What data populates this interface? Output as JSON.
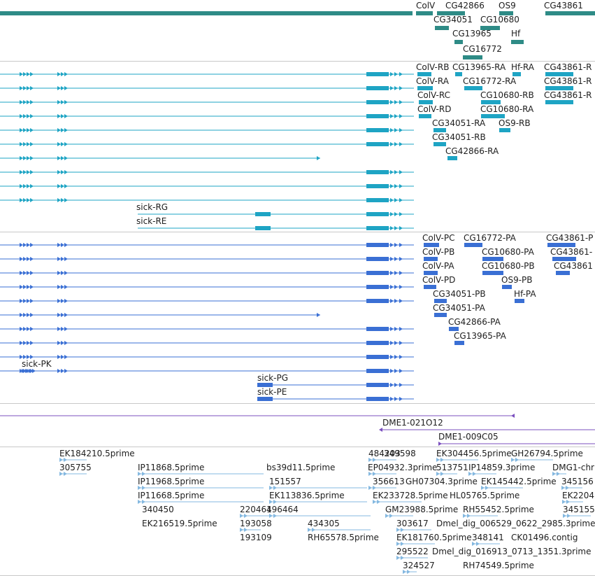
{
  "colors": {
    "gene": "#2e8b86",
    "mrna": "#1ea4c4",
    "protein": "#3a6fd4",
    "primer": "#7b4fbf",
    "est": "#84b8e0",
    "divider": "#c8c8c8"
  },
  "tracks": [
    {
      "name": "gene-track",
      "color": "gene",
      "features": [
        {
          "label": "ColV"
        },
        {
          "label": "CG42866"
        },
        {
          "label": "OS9"
        },
        {
          "label": "CG43861"
        },
        {
          "label": "CG34051"
        },
        {
          "label": "CG10680"
        },
        {
          "label": "CG13965"
        },
        {
          "label": "Hf"
        },
        {
          "label": "CG16772"
        }
      ]
    },
    {
      "name": "transcript-track",
      "color": "mrna",
      "features": [
        {
          "label": "ColV-RB"
        },
        {
          "label": "CG13965-RA"
        },
        {
          "label": "Hf-RA"
        },
        {
          "label": "CG43861-R"
        },
        {
          "label": "ColV-RA"
        },
        {
          "label": "CG16772-RA"
        },
        {
          "label": "CG43861-R"
        },
        {
          "label": "ColV-RC"
        },
        {
          "label": "CG10680-RB"
        },
        {
          "label": "CG43861-R"
        },
        {
          "label": "ColV-RD"
        },
        {
          "label": "CG10680-RA"
        },
        {
          "label": "CG34051-RA"
        },
        {
          "label": "OS9-RB"
        },
        {
          "label": "CG34051-RB"
        },
        {
          "label": "CG42866-RA"
        },
        {
          "label": "sick-RG"
        },
        {
          "label": "sick-RE"
        }
      ]
    },
    {
      "name": "polypeptide-track",
      "color": "protein",
      "features": [
        {
          "label": "ColV-PC"
        },
        {
          "label": "CG16772-PA"
        },
        {
          "label": "CG43861-P"
        },
        {
          "label": "ColV-PB"
        },
        {
          "label": "CG10680-PA"
        },
        {
          "label": "CG43861-"
        },
        {
          "label": "ColV-PA"
        },
        {
          "label": "CG10680-PB"
        },
        {
          "label": "CG43861"
        },
        {
          "label": "ColV-PD"
        },
        {
          "label": "OS9-PB"
        },
        {
          "label": "CG34051-PB"
        },
        {
          "label": "Hf-PA"
        },
        {
          "label": "CG34051-PA"
        },
        {
          "label": "CG42866-PA"
        },
        {
          "label": "CG13965-PA"
        },
        {
          "label": "sick-PK"
        },
        {
          "label": "sick-PG"
        },
        {
          "label": "sick-PE"
        }
      ]
    },
    {
      "name": "primer-track",
      "color": "primer",
      "features": [
        {
          "label": "DME1-021O12"
        },
        {
          "label": "DME1-009C05"
        }
      ]
    },
    {
      "name": "est-track",
      "color": "est",
      "features": [
        {
          "label": "EK184210.5prime"
        },
        {
          "label": "484203"
        },
        {
          "label": "349598"
        },
        {
          "label": "EK304456.5prime"
        },
        {
          "label": "GH26794.5prime"
        },
        {
          "label": "305755"
        },
        {
          "label": "IP11868.5prime"
        },
        {
          "label": "bs39d11.5prime"
        },
        {
          "label": "EP04932.3prime"
        },
        {
          "label": "513751"
        },
        {
          "label": "IP14859.3prime"
        },
        {
          "label": "DMG1-chr"
        },
        {
          "label": "IP11968.5prime"
        },
        {
          "label": "151557"
        },
        {
          "label": "356613"
        },
        {
          "label": "GH07304.3prime"
        },
        {
          "label": "EK145442.5prime"
        },
        {
          "label": "345156"
        },
        {
          "label": "IP11668.5prime"
        },
        {
          "label": "EK113836.5prime"
        },
        {
          "label": "EK233728.5prime"
        },
        {
          "label": "HL05765.5prime"
        },
        {
          "label": "EK2204"
        },
        {
          "label": "340450"
        },
        {
          "label": "220461"
        },
        {
          "label": "496464"
        },
        {
          "label": "GM23988.5prime"
        },
        {
          "label": "RH55452.5prime"
        },
        {
          "label": "345155"
        },
        {
          "label": "EK216519.5prime"
        },
        {
          "label": "193058"
        },
        {
          "label": "434305"
        },
        {
          "label": "303617"
        },
        {
          "label": "Dmel_dig_006529_0622_2985.3prime"
        },
        {
          "label": "193109"
        },
        {
          "label": "RH65578.5prime"
        },
        {
          "label": "EK181760.5prime"
        },
        {
          "label": "348141"
        },
        {
          "label": "CK01496.contig"
        },
        {
          "label": "295522"
        },
        {
          "label": "Dmel_dig_016913_0713_1351.3prime"
        },
        {
          "label": "324527"
        },
        {
          "label": "RH74549.5prime"
        }
      ]
    }
  ]
}
